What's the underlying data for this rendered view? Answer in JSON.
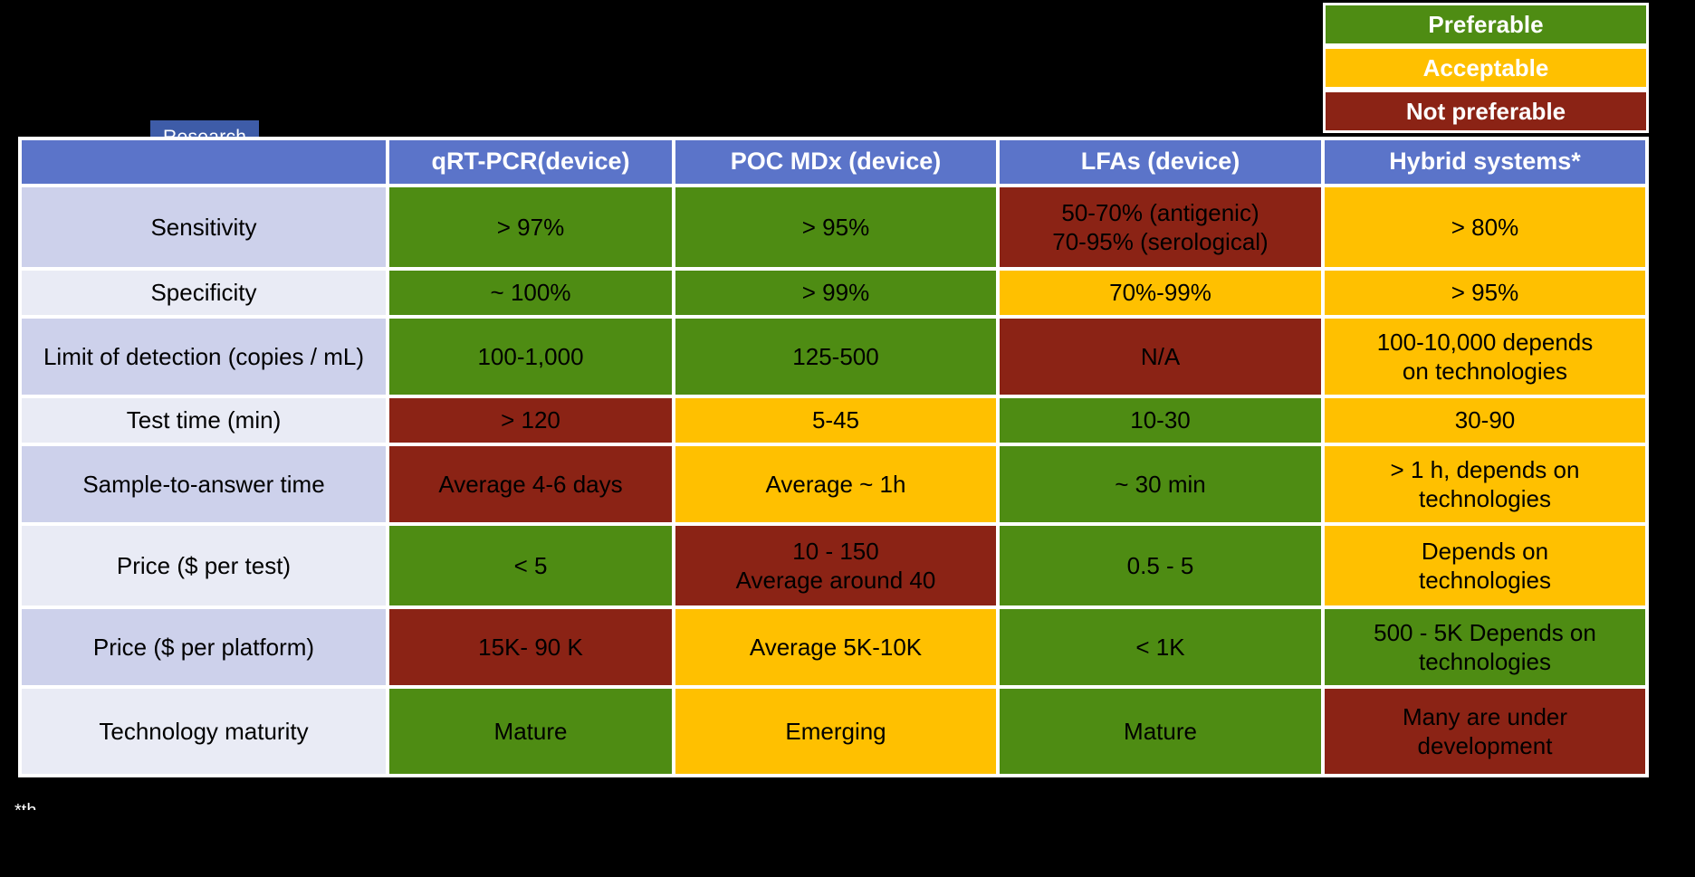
{
  "badge": {
    "label": "Research"
  },
  "legend": [
    {
      "key": "preferable",
      "label": "Preferable"
    },
    {
      "key": "acceptable",
      "label": "Acceptable"
    },
    {
      "key": "not_preferable",
      "label": "Not preferable"
    }
  ],
  "status_colors": {
    "preferable": "#4E8C13",
    "acceptable": "#FFC000",
    "not_preferable": "#8B2315"
  },
  "colors": {
    "header_blue": "#5B74C9",
    "label_band_dark": "#CDD1EB",
    "label_band_light": "#E9EBF5",
    "badge_blue": "#3E5CA8",
    "underline_blue": "#3C5CB4",
    "grid_white": "#FFFFFF",
    "page_background": "#000000"
  },
  "table": {
    "columns": [
      "qRT-PCR(device)",
      "POC MDx (device)",
      "LFAs (device)",
      "Hybrid systems*"
    ],
    "rows": [
      {
        "label": "Sensitivity",
        "cells": [
          {
            "text": "> 97%",
            "status": "preferable"
          },
          {
            "text": "> 95%",
            "status": "preferable"
          },
          {
            "text": "50-70% (antigenic)\n70-95% (serological)",
            "status": "not_preferable"
          },
          {
            "text": "> 80%",
            "status": "acceptable"
          }
        ]
      },
      {
        "label": "Specificity",
        "cells": [
          {
            "text": "~ 100%",
            "status": "preferable"
          },
          {
            "text": "> 99%",
            "status": "preferable"
          },
          {
            "text": "70%-99%",
            "status": "acceptable"
          },
          {
            "text": "> 95%",
            "status": "acceptable"
          }
        ]
      },
      {
        "label": "Limit of detection (copies / mL)",
        "cells": [
          {
            "text": "100-1,000",
            "status": "preferable"
          },
          {
            "text": "125-500",
            "status": "preferable"
          },
          {
            "text": "N/A",
            "status": "not_preferable"
          },
          {
            "text": "100-10,000 depends\non technologies",
            "status": "acceptable"
          }
        ]
      },
      {
        "label": "Test time (min)",
        "cells": [
          {
            "text": "> 120",
            "status": "not_preferable"
          },
          {
            "text": "5-45",
            "status": "acceptable"
          },
          {
            "text": "10-30",
            "status": "preferable"
          },
          {
            "text": "30-90",
            "status": "acceptable"
          }
        ]
      },
      {
        "label": "Sample-to-answer time",
        "cells": [
          {
            "text": "Average 4-6 days",
            "status": "not_preferable"
          },
          {
            "text": "Average ~ 1h",
            "status": "acceptable"
          },
          {
            "text": "~ 30 min",
            "status": "preferable"
          },
          {
            "text": "> 1 h, depends on\ntechnologies",
            "status": "acceptable"
          }
        ]
      },
      {
        "label": "Price ($ per test)",
        "cells": [
          {
            "text": "< 5",
            "status": "preferable"
          },
          {
            "text": "10 - 150\nAverage around 40",
            "status": "not_preferable"
          },
          {
            "text": "0.5 - 5",
            "status": "preferable"
          },
          {
            "text": "Depends on\ntechnologies",
            "status": "acceptable"
          }
        ]
      },
      {
        "label": "Price ($ per platform)",
        "cells": [
          {
            "text": "15K- 90 K",
            "status": "not_preferable"
          },
          {
            "text": "Average 5K-10K",
            "status": "acceptable"
          },
          {
            "text": "< 1K",
            "status": "preferable"
          },
          {
            "text": "500 - 5K Depends on\ntechnologies",
            "status": "preferable"
          }
        ]
      },
      {
        "label": "Technology maturity",
        "cells": [
          {
            "text": "Mature",
            "status": "preferable"
          },
          {
            "text": "Emerging",
            "status": "acceptable"
          },
          {
            "text": "Mature",
            "status": "preferable"
          },
          {
            "text": "Many are under\ndevelopment",
            "status": "not_preferable"
          }
        ]
      }
    ]
  },
  "artifact_fragment": "*th"
}
